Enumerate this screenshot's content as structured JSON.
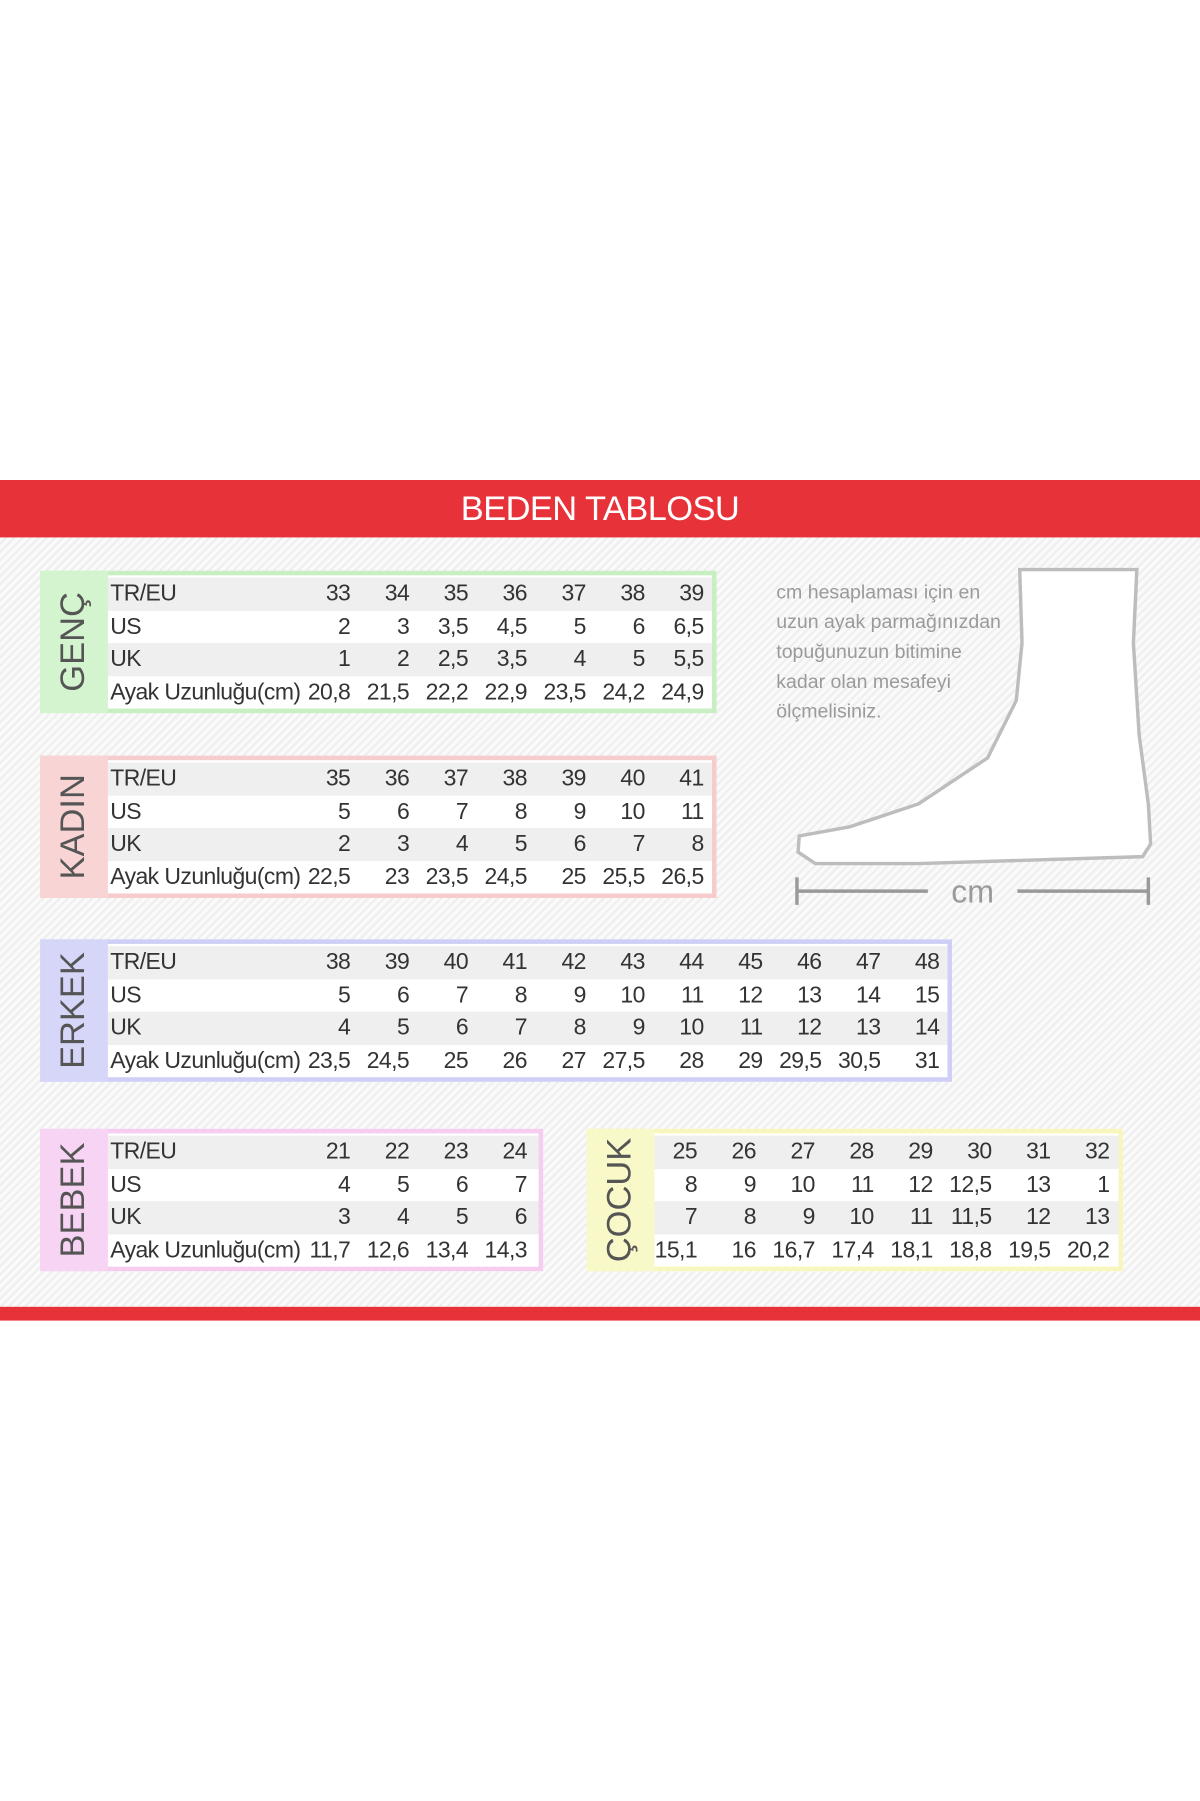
{
  "header": {
    "title": "BEDEN TABLOSU"
  },
  "tables": [
    {
      "label": "GENÇ",
      "rows": [
        {
          "name": "TR/EU",
          "values": [
            "33",
            "34",
            "35",
            "36",
            "37",
            "38",
            "39"
          ]
        },
        {
          "name": "US",
          "values": [
            "2",
            "3",
            "3,5",
            "4,5",
            "5",
            "6",
            "6,5"
          ]
        },
        {
          "name": "UK",
          "values": [
            "1",
            "2",
            "2,5",
            "3,5",
            "4",
            "5",
            "5,5"
          ]
        },
        {
          "name": "Ayak Uzunluğu(cm)",
          "values": [
            "20,8",
            "21,5",
            "22,2",
            "22,9",
            "23,5",
            "24,2",
            "24,9"
          ]
        }
      ]
    },
    {
      "label": "KADIN",
      "rows": [
        {
          "name": "TR/EU",
          "values": [
            "35",
            "36",
            "37",
            "38",
            "39",
            "40",
            "41"
          ]
        },
        {
          "name": "US",
          "values": [
            "5",
            "6",
            "7",
            "8",
            "9",
            "10",
            "11"
          ]
        },
        {
          "name": "UK",
          "values": [
            "2",
            "3",
            "4",
            "5",
            "6",
            "7",
            "8"
          ]
        },
        {
          "name": "Ayak Uzunluğu(cm)",
          "values": [
            "22,5",
            "23",
            "23,5",
            "24,5",
            "25",
            "25,5",
            "26,5"
          ]
        }
      ]
    },
    {
      "label": "ERKEK",
      "rows": [
        {
          "name": "TR/EU",
          "values": [
            "38",
            "39",
            "40",
            "41",
            "42",
            "43",
            "44",
            "45",
            "46",
            "47",
            "48"
          ]
        },
        {
          "name": "US",
          "values": [
            "5",
            "6",
            "7",
            "8",
            "9",
            "10",
            "11",
            "12",
            "13",
            "14",
            "15"
          ]
        },
        {
          "name": "UK",
          "values": [
            "4",
            "5",
            "6",
            "7",
            "8",
            "9",
            "10",
            "11",
            "12",
            "13",
            "14"
          ]
        },
        {
          "name": "Ayak Uzunluğu(cm)",
          "values": [
            "23,5",
            "24,5",
            "25",
            "26",
            "27",
            "27,5",
            "28",
            "29",
            "29,5",
            "30,5",
            "31"
          ]
        }
      ]
    },
    {
      "label": "BEBEK",
      "rows": [
        {
          "name": "TR/EU",
          "values": [
            "21",
            "22",
            "23",
            "24"
          ]
        },
        {
          "name": "US",
          "values": [
            "4",
            "5",
            "6",
            "7"
          ]
        },
        {
          "name": "UK",
          "values": [
            "3",
            "4",
            "5",
            "6"
          ]
        },
        {
          "name": "Ayak Uzunluğu(cm)",
          "values": [
            "11,7",
            "12,6",
            "13,4",
            "14,3"
          ]
        }
      ]
    },
    {
      "label": "ÇOCUK",
      "rows": [
        {
          "values": [
            "25",
            "26",
            "27",
            "28",
            "29",
            "30",
            "31",
            "32"
          ]
        },
        {
          "values": [
            "8",
            "9",
            "10",
            "11",
            "12",
            "12,5",
            "13",
            "1"
          ]
        },
        {
          "values": [
            "7",
            "8",
            "9",
            "10",
            "11",
            "11,5",
            "12",
            "13"
          ]
        },
        {
          "values": [
            "15,1",
            "16",
            "16,7",
            "17,4",
            "18,1",
            "18,8",
            "19,5",
            "20,2"
          ]
        }
      ]
    }
  ],
  "note": {
    "lines": [
      "cm hesaplaması için en",
      "uzun ayak parmağınızdan",
      "topuğunuzun bitimine",
      "kadar olan mesafeyi",
      "ölçmelisiniz."
    ]
  },
  "measure": {
    "label": "cm"
  }
}
